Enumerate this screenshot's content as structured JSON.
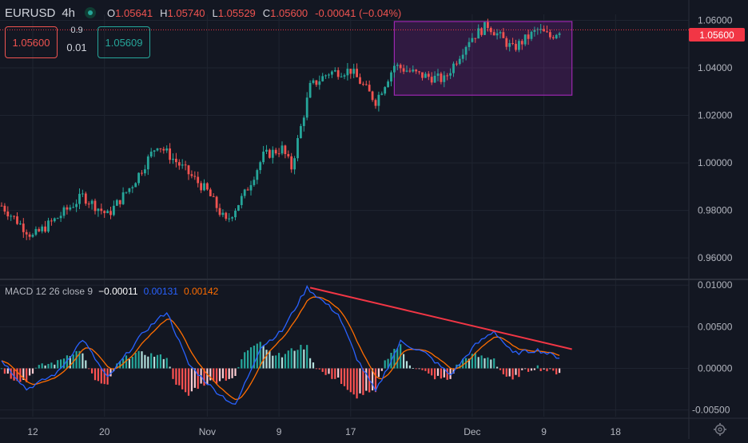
{
  "header": {
    "symbol": "EURUSD",
    "timeframe": "4h",
    "ohlc": [
      {
        "key": "O",
        "value": "1.05641"
      },
      {
        "key": "H",
        "value": "1.05740"
      },
      {
        "key": "L",
        "value": "1.05529"
      },
      {
        "key": "C",
        "value": "1.05600"
      },
      {
        "key": "",
        "value": "-0.00041 (−0.04%)"
      }
    ]
  },
  "trade": {
    "sell_price": "1.05600",
    "buy_price": "1.05609",
    "spread_top": "0.9",
    "spread_bottom": "0.01"
  },
  "macd": {
    "label": "MACD 12 26 close 9",
    "hist_value": "−0.00011",
    "macd_value": "0.00131",
    "signal_value": "0.00142"
  },
  "price_badge": "1.05600",
  "colors": {
    "up": "#26a69a",
    "down": "#ef5350",
    "macd_line": "#2962ff",
    "signal_line": "#ff6d00",
    "trendline": "#f23645",
    "rectangle": "#9c27b0"
  },
  "chart_data": [
    {
      "type": "candlestick",
      "ylim": [
        0.952,
        1.0625
      ],
      "y_ticks": [
        "1.06000",
        "1.04000",
        "1.02000",
        "1.00000",
        "0.98000",
        "0.96000"
      ],
      "x_ticks": [
        "12",
        "20",
        "Nov",
        "9",
        "17",
        "Dec",
        "9",
        "18"
      ],
      "close_path": [
        {
          "i": 0,
          "y": 0.982
        },
        {
          "i": 10,
          "y": 0.969
        },
        {
          "i": 18,
          "y": 0.977
        },
        {
          "i": 26,
          "y": 0.986
        },
        {
          "i": 34,
          "y": 0.978
        },
        {
          "i": 42,
          "y": 0.991
        },
        {
          "i": 50,
          "y": 1.008
        },
        {
          "i": 58,
          "y": 0.998
        },
        {
          "i": 66,
          "y": 0.988
        },
        {
          "i": 72,
          "y": 0.975
        },
        {
          "i": 78,
          "y": 0.987
        },
        {
          "i": 84,
          "y": 1.003
        },
        {
          "i": 90,
          "y": 1.006
        },
        {
          "i": 93,
          "y": 0.998
        },
        {
          "i": 99,
          "y": 1.032
        },
        {
          "i": 105,
          "y": 1.038
        },
        {
          "i": 112,
          "y": 1.039
        },
        {
          "i": 120,
          "y": 1.026
        },
        {
          "i": 126,
          "y": 1.041
        },
        {
          "i": 134,
          "y": 1.037
        },
        {
          "i": 142,
          "y": 1.035
        },
        {
          "i": 150,
          "y": 1.052
        },
        {
          "i": 156,
          "y": 1.058
        },
        {
          "i": 164,
          "y": 1.048
        },
        {
          "i": 172,
          "y": 1.056
        },
        {
          "i": 176,
          "y": 1.053
        },
        {
          "i": 179,
          "y": 1.056
        }
      ],
      "rectangle": {
        "from_index": 126,
        "to_index": 183,
        "top": 1.0595,
        "bottom": 1.0285
      },
      "last_price": 1.056
    },
    {
      "type": "macd",
      "ylim": [
        -0.0058,
        0.0105
      ],
      "y_ticks": [
        "0.01000",
        "0.00500",
        "0.00000",
        "-0.00500"
      ],
      "macd_path": [
        {
          "i": 0,
          "y": 0.001
        },
        {
          "i": 8,
          "y": -0.0025
        },
        {
          "i": 18,
          "y": -0.0005
        },
        {
          "i": 26,
          "y": 0.0035
        },
        {
          "i": 34,
          "y": -0.0012
        },
        {
          "i": 46,
          "y": 0.0045
        },
        {
          "i": 53,
          "y": 0.0068
        },
        {
          "i": 60,
          "y": 0.0005
        },
        {
          "i": 68,
          "y": -0.0025
        },
        {
          "i": 75,
          "y": -0.0045
        },
        {
          "i": 83,
          "y": 0.0025
        },
        {
          "i": 90,
          "y": 0.0045
        },
        {
          "i": 98,
          "y": 0.0097
        },
        {
          "i": 108,
          "y": 0.0065
        },
        {
          "i": 114,
          "y": 0.0012
        },
        {
          "i": 120,
          "y": -0.0028
        },
        {
          "i": 128,
          "y": 0.0032
        },
        {
          "i": 136,
          "y": 0.0018
        },
        {
          "i": 144,
          "y": -0.0008
        },
        {
          "i": 152,
          "y": 0.0028
        },
        {
          "i": 158,
          "y": 0.0045
        },
        {
          "i": 164,
          "y": 0.0018
        },
        {
          "i": 172,
          "y": 0.0022
        },
        {
          "i": 179,
          "y": 0.0013
        }
      ],
      "trendline": {
        "from": {
          "i": 99,
          "y": 0.0097
        },
        "to": {
          "i": 183,
          "y": 0.0023
        }
      }
    }
  ]
}
